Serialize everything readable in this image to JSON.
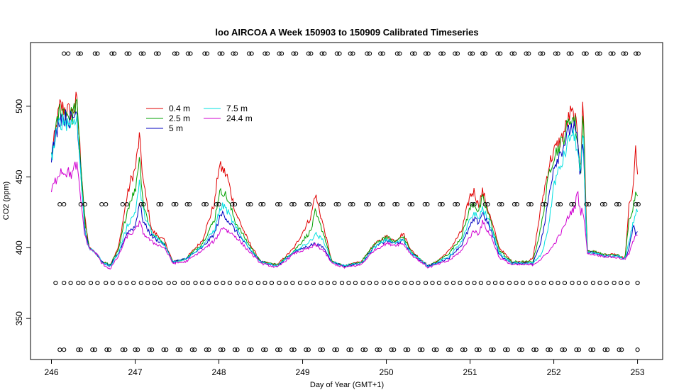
{
  "chart_data": {
    "type": "line",
    "title": "loo AIRCOA A  Week 150903 to 150909  Calibrated Timeseries",
    "xlabel": "Day of Year (GMT+1)",
    "ylabel": "CO2 (ppm)",
    "xlim": [
      245.75,
      253.3
    ],
    "ylim": [
      321,
      545
    ],
    "x_ticks": [
      246,
      247,
      248,
      249,
      250,
      251,
      252,
      253
    ],
    "x_tick_labels": [
      "246",
      "247",
      "248",
      "249",
      "250",
      "251",
      "252",
      "253"
    ],
    "y_ticks": [
      350,
      400,
      450,
      500
    ],
    "y_tick_labels": [
      "350",
      "400",
      "450",
      "500"
    ],
    "grid": false,
    "legend_position": "top-left",
    "series": [
      {
        "name": "0.4 m",
        "color": "#e00000",
        "x": [
          246.0,
          246.1,
          246.25,
          246.3,
          246.4,
          246.45,
          246.55,
          246.6,
          246.7,
          246.8,
          246.9,
          246.95,
          247.0,
          247.05,
          247.1,
          247.2,
          247.35,
          247.45,
          247.6,
          247.8,
          247.95,
          248.0,
          248.05,
          248.1,
          248.2,
          248.35,
          248.5,
          248.7,
          248.9,
          249.1,
          249.15,
          249.25,
          249.35,
          249.5,
          249.7,
          249.85,
          250.0,
          250.1,
          250.2,
          250.3,
          250.5,
          250.6,
          250.75,
          250.9,
          251.0,
          251.05,
          251.1,
          251.15,
          251.25,
          251.35,
          251.5,
          251.65,
          251.75,
          251.85,
          251.9,
          251.95,
          252.0,
          252.1,
          252.2,
          252.25,
          252.28,
          252.32,
          252.35,
          252.38,
          252.4,
          252.5,
          252.6,
          252.75,
          252.85,
          252.9,
          252.95,
          252.98,
          253.0
        ],
        "y": [
          465,
          500,
          495,
          505,
          420,
          400,
          395,
          390,
          388,
          400,
          435,
          448,
          455,
          478,
          445,
          412,
          405,
          390,
          392,
          405,
          432,
          458,
          455,
          450,
          425,
          405,
          390,
          388,
          400,
          422,
          438,
          415,
          390,
          387,
          390,
          402,
          408,
          405,
          410,
          398,
          387,
          390,
          398,
          412,
          437,
          440,
          430,
          440,
          420,
          400,
          390,
          390,
          392,
          430,
          445,
          460,
          468,
          478,
          495,
          492,
          480,
          458,
          505,
          440,
          398,
          397,
          395,
          395,
          392,
          430,
          440,
          475,
          448
        ]
      },
      {
        "name": "2.5 m",
        "color": "#00a000",
        "x": [
          246.0,
          246.1,
          246.25,
          246.3,
          246.4,
          246.45,
          246.55,
          246.6,
          246.7,
          246.8,
          246.9,
          246.95,
          247.0,
          247.05,
          247.1,
          247.2,
          247.35,
          247.45,
          247.6,
          247.8,
          247.95,
          248.0,
          248.05,
          248.1,
          248.2,
          248.35,
          248.5,
          248.7,
          248.9,
          249.1,
          249.15,
          249.25,
          249.35,
          249.5,
          249.7,
          249.85,
          250.0,
          250.1,
          250.2,
          250.3,
          250.5,
          250.6,
          250.75,
          250.9,
          251.0,
          251.05,
          251.1,
          251.15,
          251.25,
          251.35,
          251.5,
          251.65,
          251.75,
          251.85,
          251.9,
          251.95,
          252.0,
          252.1,
          252.2,
          252.25,
          252.28,
          252.32,
          252.35,
          252.38,
          252.4,
          252.5,
          252.6,
          252.75,
          252.85,
          252.9,
          252.95,
          252.98,
          253.0
        ],
        "y": [
          465,
          498,
          493,
          503,
          418,
          400,
          395,
          390,
          388,
          398,
          425,
          435,
          440,
          465,
          430,
          410,
          403,
          390,
          392,
          403,
          420,
          438,
          440,
          435,
          418,
          403,
          390,
          388,
          398,
          412,
          425,
          410,
          390,
          387,
          390,
          402,
          408,
          404,
          408,
          397,
          387,
          390,
          396,
          408,
          428,
          432,
          425,
          435,
          418,
          398,
          390,
          390,
          390,
          415,
          435,
          455,
          465,
          475,
          492,
          490,
          478,
          452,
          500,
          432,
          398,
          397,
          395,
          395,
          392,
          420,
          430,
          440,
          440
        ]
      },
      {
        "name": "5 m",
        "color": "#0000c0",
        "x": [
          246.0,
          246.1,
          246.25,
          246.3,
          246.4,
          246.45,
          246.55,
          246.6,
          246.7,
          246.8,
          246.9,
          246.95,
          247.0,
          247.05,
          247.1,
          247.2,
          247.35,
          247.45,
          247.6,
          247.8,
          247.95,
          248.0,
          248.05,
          248.1,
          248.2,
          248.35,
          248.5,
          248.7,
          248.9,
          249.1,
          249.15,
          249.25,
          249.35,
          249.5,
          249.7,
          249.85,
          250.0,
          250.1,
          250.2,
          250.3,
          250.5,
          250.6,
          250.75,
          250.9,
          251.0,
          251.05,
          251.1,
          251.15,
          251.25,
          251.35,
          251.5,
          251.65,
          251.75,
          251.85,
          251.9,
          251.95,
          252.0,
          252.1,
          252.2,
          252.25,
          252.28,
          252.32,
          252.35,
          252.38,
          252.4,
          252.5,
          252.6,
          252.75,
          252.85,
          252.9,
          252.95,
          252.98,
          253.0
        ],
        "y": [
          465,
          493,
          490,
          498,
          412,
          400,
          395,
          390,
          387,
          396,
          410,
          413,
          415,
          432,
          418,
          408,
          402,
          390,
          392,
          400,
          410,
          420,
          425,
          420,
          412,
          400,
          390,
          387,
          397,
          402,
          403,
          400,
          390,
          387,
          389,
          400,
          405,
          403,
          405,
          396,
          387,
          389,
          393,
          402,
          415,
          420,
          418,
          425,
          412,
          395,
          389,
          389,
          389,
          405,
          420,
          440,
          458,
          470,
          485,
          484,
          475,
          448,
          485,
          420,
          397,
          396,
          394,
          394,
          392,
          400,
          415,
          410,
          412
        ]
      },
      {
        "name": "7.5 m",
        "color": "#00e0e0",
        "x": [
          246.0,
          246.1,
          246.25,
          246.3,
          246.4,
          246.45,
          246.55,
          246.6,
          246.7,
          246.8,
          246.9,
          246.95,
          247.0,
          247.05,
          247.1,
          247.2,
          247.35,
          247.45,
          247.6,
          247.8,
          247.95,
          248.0,
          248.05,
          248.1,
          248.2,
          248.35,
          248.5,
          248.7,
          248.9,
          249.1,
          249.15,
          249.25,
          249.35,
          249.5,
          249.7,
          249.85,
          250.0,
          250.1,
          250.2,
          250.3,
          250.5,
          250.6,
          250.75,
          250.9,
          251.0,
          251.05,
          251.1,
          251.15,
          251.25,
          251.35,
          251.5,
          251.65,
          251.75,
          251.85,
          251.9,
          251.95,
          252.0,
          252.1,
          252.2,
          252.25,
          252.28,
          252.32,
          252.35,
          252.38,
          252.4,
          252.5,
          252.6,
          252.75,
          252.85,
          252.9,
          252.95,
          252.98,
          253.0
        ],
        "y": [
          463,
          490,
          488,
          495,
          410,
          400,
          395,
          390,
          387,
          396,
          415,
          420,
          425,
          445,
          425,
          410,
          402,
          390,
          392,
          401,
          413,
          425,
          430,
          426,
          414,
          401,
          390,
          387,
          397,
          405,
          410,
          405,
          390,
          387,
          389,
          400,
          406,
          403,
          406,
          396,
          387,
          389,
          394,
          404,
          420,
          425,
          420,
          428,
          415,
          396,
          389,
          389,
          389,
          395,
          405,
          420,
          445,
          460,
          480,
          478,
          470,
          450,
          485,
          425,
          397,
          396,
          394,
          394,
          392,
          405,
          418,
          425,
          425
        ]
      },
      {
        "name": "24.4 m",
        "color": "#d000d0",
        "x": [
          246.0,
          246.1,
          246.25,
          246.3,
          246.4,
          246.45,
          246.55,
          246.6,
          246.7,
          246.8,
          246.9,
          246.95,
          247.0,
          247.05,
          247.1,
          247.2,
          247.35,
          247.45,
          247.6,
          247.8,
          247.95,
          248.0,
          248.05,
          248.1,
          248.2,
          248.35,
          248.5,
          248.7,
          248.9,
          249.1,
          249.15,
          249.25,
          249.35,
          249.5,
          249.7,
          249.85,
          250.0,
          250.1,
          250.2,
          250.3,
          250.5,
          250.6,
          250.75,
          250.9,
          251.0,
          251.05,
          251.1,
          251.15,
          251.25,
          251.35,
          251.5,
          251.65,
          251.75,
          251.85,
          251.9,
          251.95,
          252.0,
          252.1,
          252.2,
          252.25,
          252.28,
          252.32,
          252.35,
          252.38,
          252.4,
          252.5,
          252.6,
          252.75,
          252.85,
          252.9,
          252.95,
          252.98,
          253.0
        ],
        "y": [
          440,
          455,
          452,
          460,
          408,
          400,
          395,
          389,
          385,
          394,
          408,
          410,
          412,
          418,
          410,
          404,
          400,
          389,
          390,
          398,
          405,
          410,
          415,
          412,
          408,
          398,
          389,
          386,
          396,
          400,
          402,
          398,
          389,
          386,
          388,
          398,
          403,
          402,
          403,
          395,
          386,
          388,
          391,
          398,
          408,
          412,
          410,
          418,
          408,
          393,
          388,
          388,
          388,
          392,
          395,
          398,
          402,
          412,
          425,
          428,
          440,
          425,
          428,
          410,
          396,
          395,
          394,
          393,
          392,
          396,
          405,
          408,
          410
        ]
      }
    ],
    "reference_points": [
      {
        "y": 537.2,
        "x": [
          246.15,
          246.2,
          246.32,
          246.35,
          246.52,
          246.55,
          246.72,
          246.75,
          246.9,
          246.93,
          247.07,
          247.1,
          247.25,
          247.28,
          247.47,
          247.5,
          247.63,
          247.66,
          247.83,
          247.86,
          248.01,
          248.04,
          248.17,
          248.2,
          248.36,
          248.39,
          248.55,
          248.58,
          248.72,
          248.75,
          248.89,
          248.92,
          249.07,
          249.1,
          249.23,
          249.26,
          249.41,
          249.44,
          249.57,
          249.6,
          249.77,
          249.8,
          249.93,
          249.96,
          250.13,
          250.16,
          250.31,
          250.34,
          250.47,
          250.5,
          250.65,
          250.68,
          250.82,
          250.85,
          251.0,
          251.03,
          251.15,
          251.18,
          251.33,
          251.36,
          251.5,
          251.53,
          251.67,
          251.7,
          251.84,
          251.87,
          252.02,
          252.05,
          252.18,
          252.21,
          252.36,
          252.39,
          252.52,
          252.55,
          252.68,
          252.71,
          252.83,
          252.86,
          252.98,
          253.01
        ]
      },
      {
        "y": 430.7,
        "x": [
          246.1,
          246.15,
          246.35,
          246.4,
          246.6,
          246.65,
          246.85,
          246.9,
          247.07,
          247.1,
          247.28,
          247.31,
          247.46,
          247.49,
          247.62,
          247.65,
          247.82,
          247.85,
          247.97,
          248.0,
          248.16,
          248.19,
          248.35,
          248.38,
          248.5,
          248.53,
          248.7,
          248.73,
          248.87,
          248.9,
          249.05,
          249.08,
          249.22,
          249.25,
          249.4,
          249.43,
          249.57,
          249.6,
          249.76,
          249.79,
          249.93,
          249.96,
          250.1,
          250.13,
          250.28,
          250.31,
          250.46,
          250.49,
          250.64,
          250.67,
          250.82,
          250.85,
          251.02,
          251.05,
          251.18,
          251.21,
          251.35,
          251.38,
          251.53,
          251.56,
          251.7,
          251.73,
          251.87,
          251.9,
          252.05,
          252.08,
          252.21,
          252.24,
          252.39,
          252.42,
          252.58,
          252.61,
          252.75,
          252.78,
          252.98,
          253.01
        ]
      },
      {
        "y": 375.1,
        "x": [
          246.05,
          246.15,
          246.23,
          246.32,
          246.38,
          246.47,
          246.55,
          246.65,
          246.73,
          246.82,
          246.9,
          246.98,
          247.07,
          247.15,
          247.23,
          247.3,
          247.4,
          247.47,
          247.57,
          247.63,
          247.72,
          247.8,
          247.88,
          247.97,
          248.05,
          248.13,
          248.22,
          248.3,
          248.38,
          248.47,
          248.55,
          248.63,
          248.72,
          248.8,
          248.88,
          248.97,
          249.05,
          249.13,
          249.22,
          249.3,
          249.38,
          249.47,
          249.55,
          249.63,
          249.72,
          249.8,
          249.88,
          249.97,
          250.05,
          250.13,
          250.22,
          250.3,
          250.38,
          250.47,
          250.55,
          250.63,
          250.72,
          250.8,
          250.88,
          250.97,
          251.05,
          251.13,
          251.22,
          251.3,
          251.38,
          251.47,
          251.55,
          251.63,
          251.72,
          251.8,
          251.88,
          251.97,
          252.05,
          252.13,
          252.22,
          252.3,
          252.38,
          252.47,
          252.55,
          252.63,
          252.72,
          252.8,
          252.88,
          253.0
        ]
      },
      {
        "y": 327.9,
        "x": [
          246.1,
          246.15,
          246.32,
          246.35,
          246.49,
          246.52,
          246.66,
          246.69,
          246.85,
          246.88,
          247.0,
          247.03,
          247.17,
          247.2,
          247.34,
          247.37,
          247.51,
          247.54,
          247.68,
          247.71,
          247.85,
          247.88,
          248.02,
          248.05,
          248.19,
          248.22,
          248.36,
          248.39,
          248.53,
          248.56,
          248.7,
          248.73,
          248.87,
          248.9,
          249.04,
          249.07,
          249.21,
          249.24,
          249.38,
          249.41,
          249.55,
          249.58,
          249.72,
          249.75,
          249.89,
          249.92,
          250.06,
          250.09,
          250.23,
          250.26,
          250.4,
          250.43,
          250.57,
          250.6,
          250.74,
          250.77,
          250.91,
          250.94,
          251.08,
          251.11,
          251.25,
          251.28,
          251.42,
          251.45,
          251.59,
          251.62,
          251.76,
          251.79,
          251.93,
          251.96,
          252.1,
          252.13,
          252.27,
          252.3,
          252.44,
          252.47,
          252.61,
          252.64,
          252.78,
          252.81,
          253.0
        ]
      }
    ]
  }
}
